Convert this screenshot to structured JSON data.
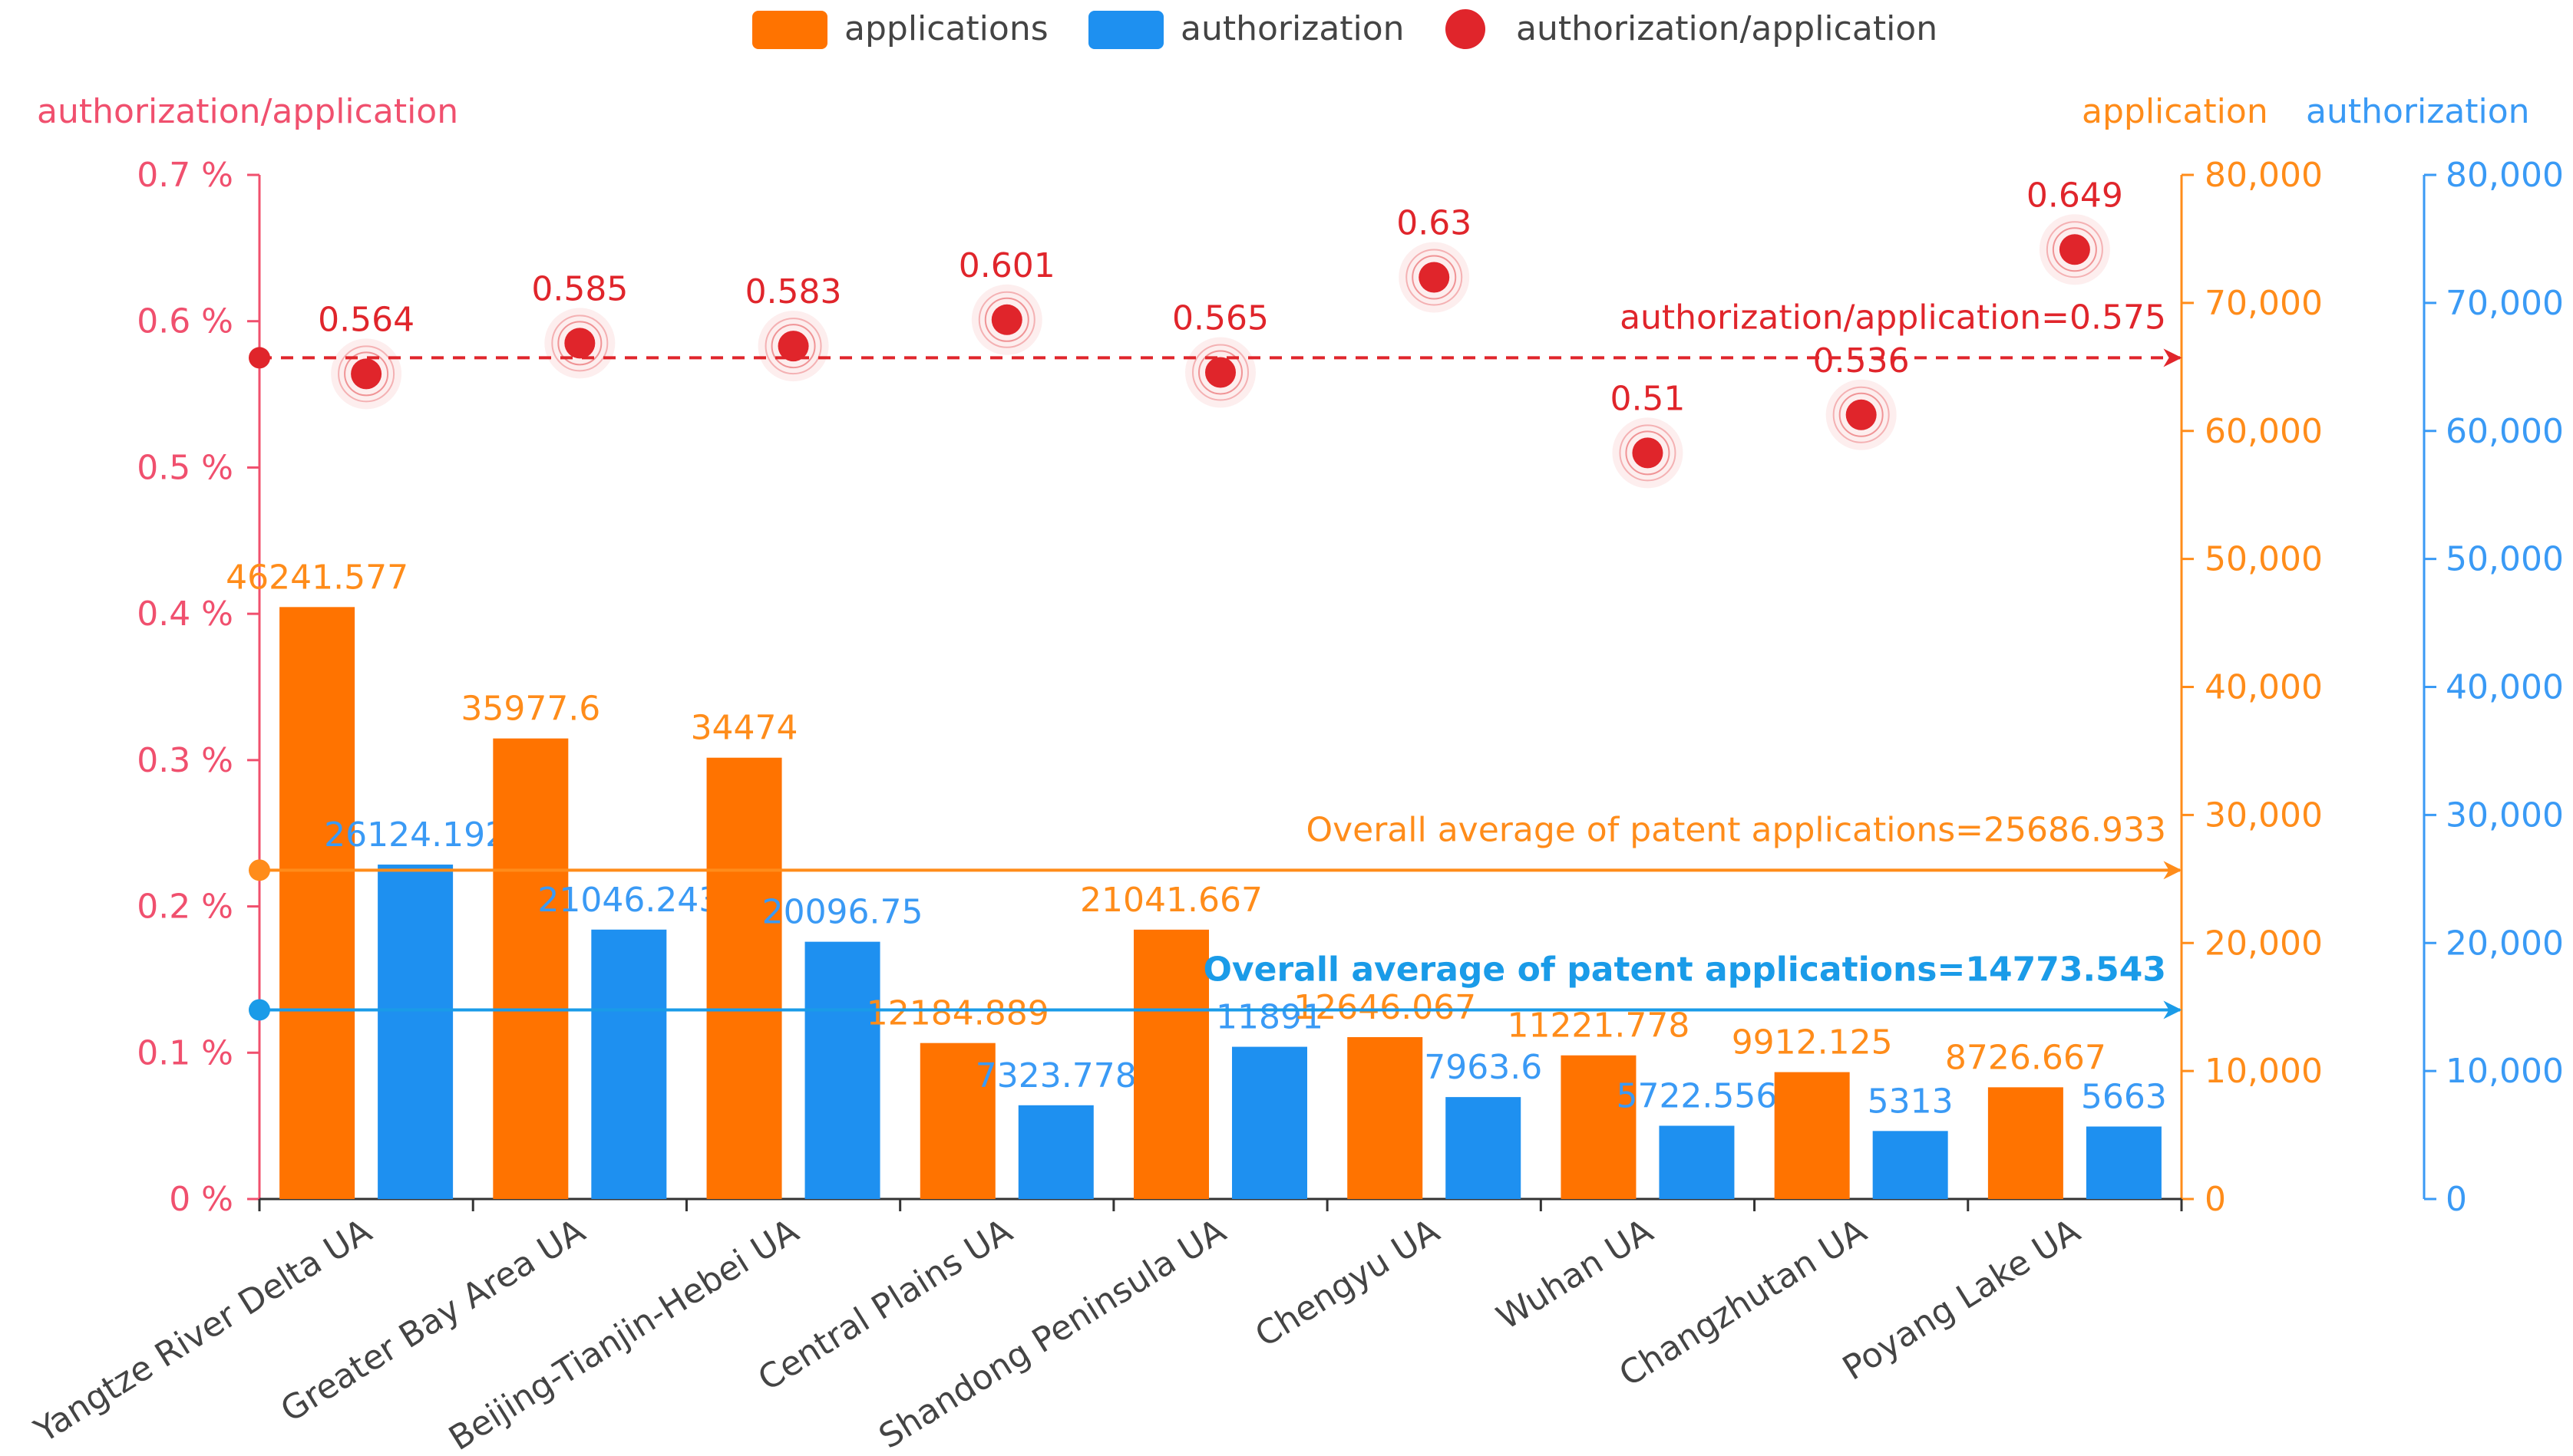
{
  "chart_data": {
    "type": "bar",
    "categories": [
      "Yangtze River Delta UA",
      "Greater Bay Area UA",
      "Beijing-Tianjin-Hebei UA",
      "Central Plains UA",
      "Shandong Peninsula UA",
      "Chengyu UA",
      "Wuhan UA",
      "Changzhutan UA",
      "Poyang Lake UA"
    ],
    "series": [
      {
        "name": "applications",
        "kind": "bar",
        "axis": "application",
        "color": "#ff7300",
        "values": [
          46241.577,
          35977.6,
          34474,
          12184.889,
          21041.667,
          12646.067,
          11221.778,
          9912.125,
          8726.667
        ],
        "labels": [
          "46241.577",
          "35977.6",
          "34474",
          "12184.889",
          "21041.667",
          "12646.067",
          "11221.778",
          "9912.125",
          "8726.667"
        ]
      },
      {
        "name": "authorization",
        "kind": "bar",
        "axis": "authorization",
        "color": "#1e90f0",
        "values": [
          26124.192,
          21046.243,
          20096.75,
          7323.778,
          11891,
          7963.6,
          5722.556,
          5313,
          5663
        ],
        "labels": [
          "26124.192",
          "21046.243",
          "20096.75",
          "7323.778",
          "11891",
          "7963.6",
          "5722.556",
          "5313",
          "5663"
        ]
      },
      {
        "name": "authorization/application",
        "kind": "scatter",
        "axis": "ratio",
        "color": "#e0252b",
        "values": [
          0.564,
          0.585,
          0.583,
          0.601,
          0.565,
          0.63,
          0.51,
          0.536,
          0.649
        ],
        "labels": [
          "0.564",
          "0.585",
          "0.583",
          "0.601",
          "0.565",
          "0.63",
          "0.51",
          "0.536",
          "0.649"
        ]
      }
    ],
    "axes": {
      "ratio": {
        "label": "authorization/application",
        "min": 0,
        "max": 0.7,
        "color": "#f0506e",
        "ticks": [
          "0 %",
          "0.1 %",
          "0.2 %",
          "0.3 %",
          "0.4 %",
          "0.5 %",
          "0.6 %",
          "0.7 %"
        ]
      },
      "application": {
        "label": "application",
        "min": 0,
        "max": 80000,
        "color": "#ff8c1a",
        "ticks": [
          "0",
          "10,000",
          "20,000",
          "30,000",
          "40,000",
          "50,000",
          "60,000",
          "70,000",
          "80,000"
        ]
      },
      "authorization": {
        "label": "authorization",
        "min": 0,
        "max": 80000,
        "color": "#3a9af5",
        "ticks": [
          "0",
          "10,000",
          "20,000",
          "30,000",
          "40,000",
          "50,000",
          "60,000",
          "70,000",
          "80,000"
        ]
      }
    },
    "reference_lines": [
      {
        "axis": "ratio",
        "value": 0.575,
        "color": "#e0252b",
        "style": "dashed",
        "label": "authorization/application=0.575"
      },
      {
        "axis": "application",
        "value": 25686.933,
        "color": "#ff8c1a",
        "style": "solid",
        "label": "Overall average of patent applications=25686.933"
      },
      {
        "axis": "authorization",
        "value": 14773.543,
        "color": "#1a9be8",
        "style": "solid",
        "label": "Overall average of patent applications=14773.543"
      }
    ],
    "legend": {
      "position": "top-center",
      "items": [
        {
          "label": "applications",
          "color": "#ff7300",
          "shape": "rect"
        },
        {
          "label": "authorization",
          "color": "#1e90f0",
          "shape": "rect"
        },
        {
          "label": "authorization/application",
          "color": "#e0252b",
          "shape": "circle"
        }
      ]
    }
  }
}
